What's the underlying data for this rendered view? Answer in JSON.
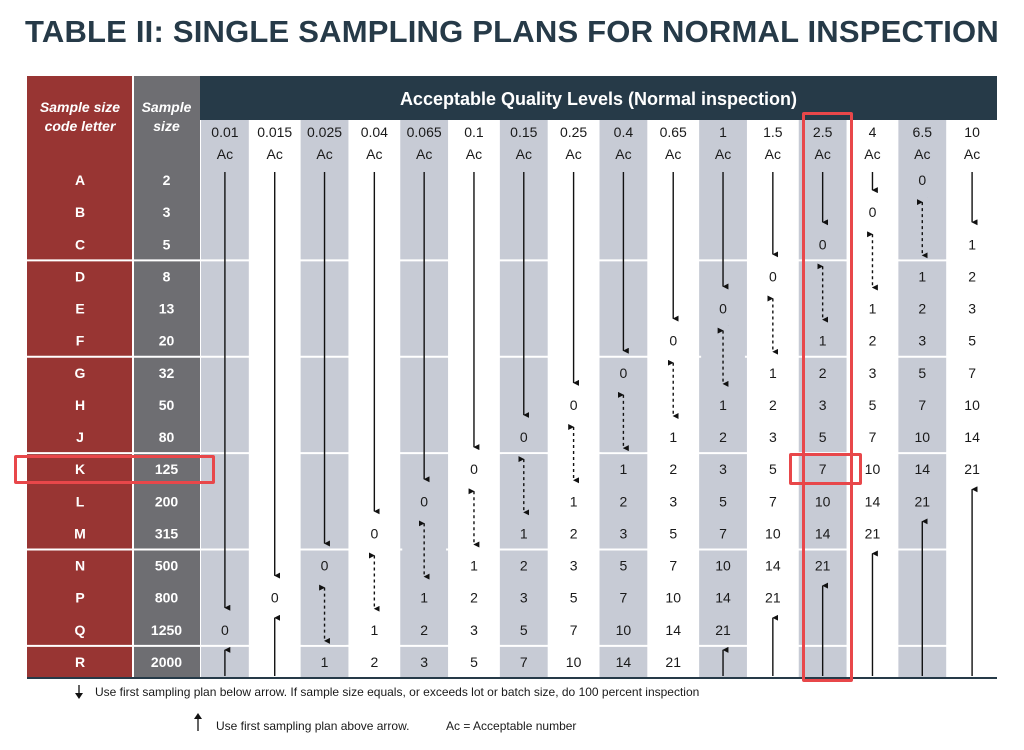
{
  "title": "TABLE II: SINGLE SAMPLING PLANS FOR NORMAL INSPECTION",
  "header": {
    "code_letter_label": [
      "Sample size",
      "code letter"
    ],
    "sample_size_label": [
      "Sample",
      "size"
    ],
    "aql_title": "Acceptable Quality Levels (Normal inspection)",
    "ac_label": "Ac"
  },
  "aql_levels": [
    "0.01",
    "0.015",
    "0.025",
    "0.04",
    "0.065",
    "0.1",
    "0.15",
    "0.25",
    "0.4",
    "0.65",
    "1",
    "1.5",
    "2.5",
    "4",
    "6.5",
    "10"
  ],
  "rows": [
    {
      "letter": "A",
      "size": "2"
    },
    {
      "letter": "B",
      "size": "3"
    },
    {
      "letter": "C",
      "size": "5"
    },
    {
      "letter": "D",
      "size": "8"
    },
    {
      "letter": "E",
      "size": "13"
    },
    {
      "letter": "F",
      "size": "20"
    },
    {
      "letter": "G",
      "size": "32"
    },
    {
      "letter": "H",
      "size": "50"
    },
    {
      "letter": "J",
      "size": "80"
    },
    {
      "letter": "K",
      "size": "125"
    },
    {
      "letter": "L",
      "size": "200"
    },
    {
      "letter": "M",
      "size": "315"
    },
    {
      "letter": "N",
      "size": "500"
    },
    {
      "letter": "P",
      "size": "800"
    },
    {
      "letter": "Q",
      "size": "1250"
    },
    {
      "letter": "R",
      "size": "2000"
    }
  ],
  "cells": [
    [
      "D",
      "D",
      "D",
      "D",
      "D",
      "D",
      "D",
      "D",
      "D",
      "D",
      "D",
      "D",
      "D",
      "D",
      "0",
      "D"
    ],
    [
      "D",
      "D",
      "D",
      "D",
      "D",
      "D",
      "D",
      "D",
      "D",
      "D",
      "D",
      "D",
      "D",
      "0",
      "U",
      "D"
    ],
    [
      "D",
      "D",
      "D",
      "D",
      "D",
      "D",
      "D",
      "D",
      "D",
      "D",
      "D",
      "D",
      "0",
      "U",
      "D",
      "1"
    ],
    [
      "D",
      "D",
      "D",
      "D",
      "D",
      "D",
      "D",
      "D",
      "D",
      "D",
      "D",
      "0",
      "U",
      "D",
      "1",
      "2"
    ],
    [
      "D",
      "D",
      "D",
      "D",
      "D",
      "D",
      "D",
      "D",
      "D",
      "D",
      "0",
      "U",
      "D",
      "1",
      "2",
      "3"
    ],
    [
      "D",
      "D",
      "D",
      "D",
      "D",
      "D",
      "D",
      "D",
      "D",
      "0",
      "U",
      "D",
      "1",
      "2",
      "3",
      "5"
    ],
    [
      "D",
      "D",
      "D",
      "D",
      "D",
      "D",
      "D",
      "D",
      "0",
      "U",
      "D",
      "1",
      "2",
      "3",
      "5",
      "7"
    ],
    [
      "D",
      "D",
      "D",
      "D",
      "D",
      "D",
      "D",
      "0",
      "U",
      "D",
      "1",
      "2",
      "3",
      "5",
      "7",
      "10"
    ],
    [
      "D",
      "D",
      "D",
      "D",
      "D",
      "D",
      "0",
      "U",
      "D",
      "1",
      "2",
      "3",
      "5",
      "7",
      "10",
      "14"
    ],
    [
      "D",
      "D",
      "D",
      "D",
      "D",
      "0",
      "U",
      "D",
      "1",
      "2",
      "3",
      "5",
      "7",
      "10",
      "14",
      "21"
    ],
    [
      "D",
      "D",
      "D",
      "D",
      "0",
      "U",
      "D",
      "1",
      "2",
      "3",
      "5",
      "7",
      "10",
      "14",
      "21",
      "U"
    ],
    [
      "D",
      "D",
      "D",
      "0",
      "U",
      "D",
      "1",
      "2",
      "3",
      "5",
      "7",
      "10",
      "14",
      "21",
      "U",
      "U"
    ],
    [
      "D",
      "D",
      "0",
      "U",
      "D",
      "1",
      "2",
      "3",
      "5",
      "7",
      "10",
      "14",
      "21",
      "U",
      "U",
      "U"
    ],
    [
      "D",
      "0",
      "U",
      "D",
      "1",
      "2",
      "3",
      "5",
      "7",
      "10",
      "14",
      "21",
      "U",
      "U",
      "U",
      "U"
    ],
    [
      "0",
      "U",
      "D",
      "1",
      "2",
      "3",
      "5",
      "7",
      "10",
      "14",
      "21",
      "U",
      "U",
      "U",
      "U",
      "U"
    ],
    [
      "U",
      "U",
      "1",
      "2",
      "3",
      "5",
      "7",
      "10",
      "14",
      "21",
      "U",
      "U",
      "U",
      "U",
      "U",
      "U"
    ]
  ],
  "highlight": {
    "column": "2.5",
    "row": "K",
    "value": "7"
  },
  "footnotes": {
    "down": "Use first sampling plan below arrow. If sample size equals, or exceeds lot or batch size, do 100 percent inspection",
    "up": "Use first sampling plan above arrow.",
    "ac": "Ac = Acceptable number"
  },
  "colors": {
    "dark_red": "#983533",
    "dark_gray": "#6e6e72",
    "header_navy": "#263a48",
    "shaded_column": "#c7cbd5",
    "highlight": "#e8474a"
  }
}
